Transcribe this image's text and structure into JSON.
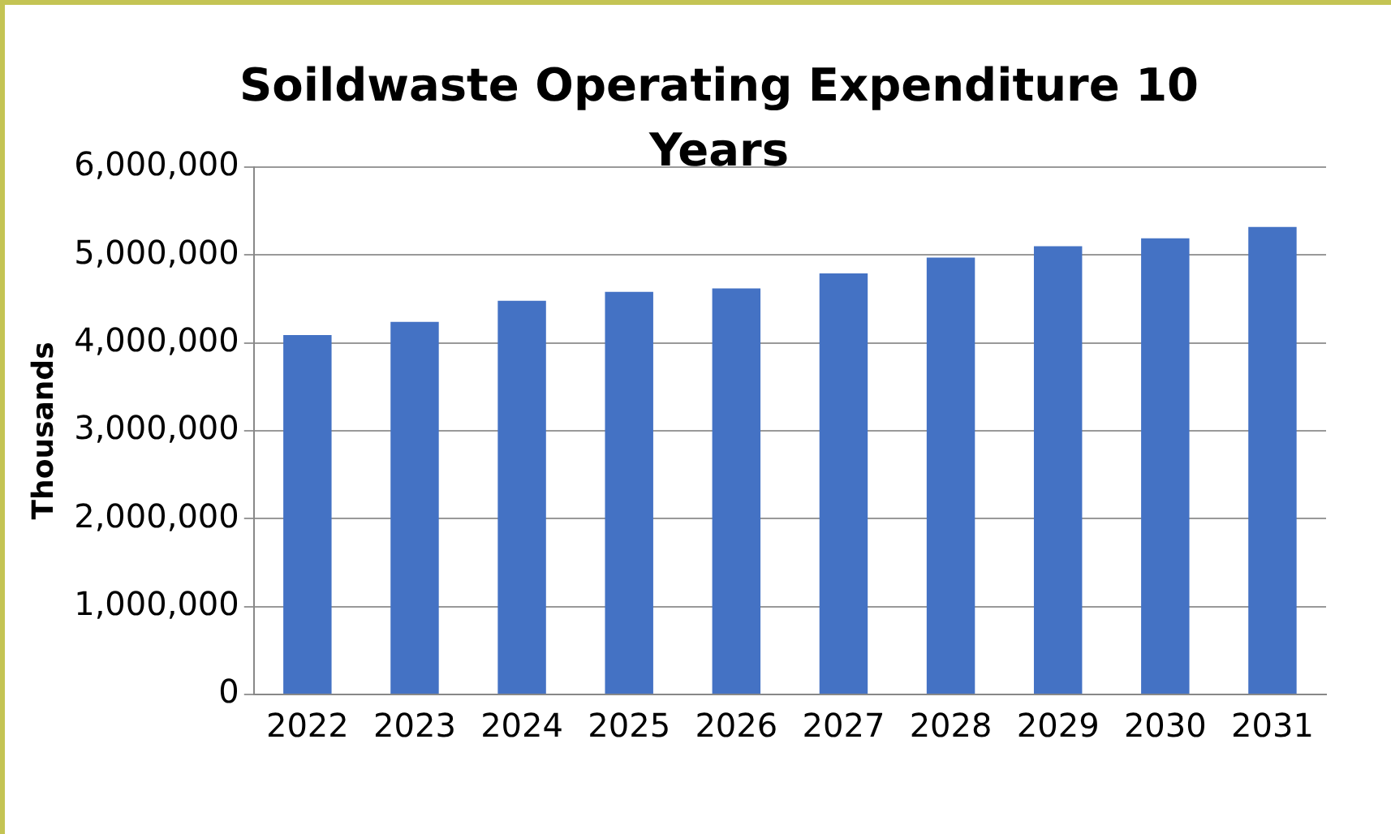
{
  "chart_data": {
    "type": "bar",
    "title": "Soildwaste Operating Expenditure 10 Years",
    "ylabel": "Thousands",
    "categories": [
      "2022",
      "2023",
      "2024",
      "2025",
      "2026",
      "2027",
      "2028",
      "2029",
      "2030",
      "2031"
    ],
    "values": [
      4090000,
      4240000,
      4480000,
      4580000,
      4620000,
      4790000,
      4970000,
      5100000,
      5190000,
      5320000
    ],
    "color": "#4472c4",
    "ylim": [
      0,
      6000000
    ],
    "yticks": [
      0,
      {
        "value": 1000000,
        "label": "1,000,000"
      },
      {
        "value": 2000000,
        "label": "2,000,000"
      },
      {
        "value": 3000000,
        "label": "3,000,000"
      },
      {
        "value": 4000000,
        "label": "4,000,000"
      },
      {
        "value": 5000000,
        "label": "5,000,000"
      },
      {
        "value": 6000000,
        "label": "6,000,000"
      }
    ],
    "grid": "y",
    "legend": false
  }
}
